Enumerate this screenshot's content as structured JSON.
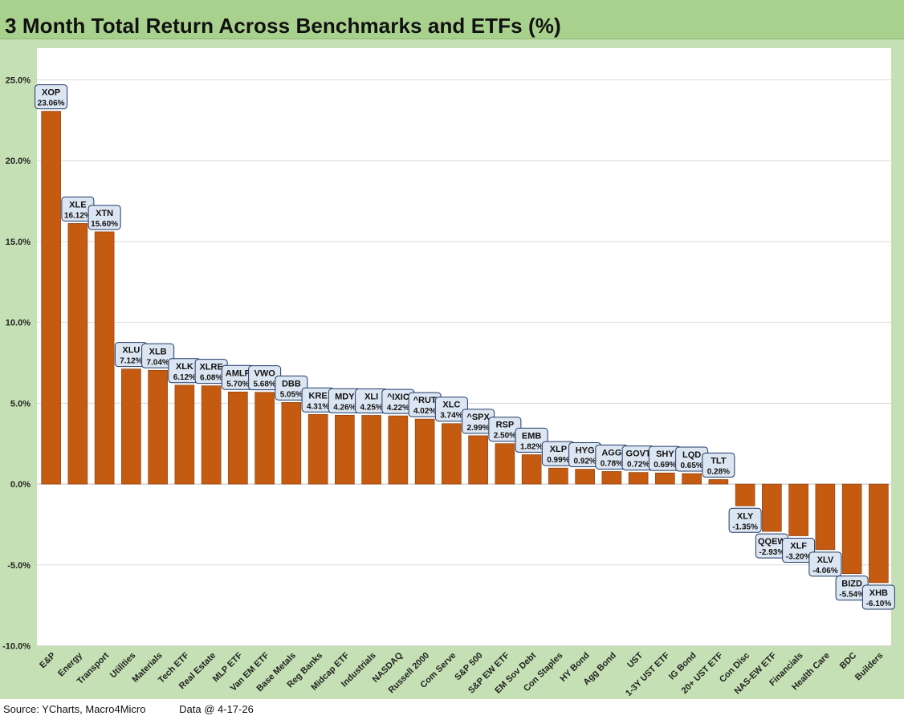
{
  "title": "3 Month Total Return Across Benchmarks and ETFs (%)",
  "footer": {
    "source": "Source: YCharts, Macro4Micro",
    "date": "Data @ 4-17-26"
  },
  "colors": {
    "bar": "#c55a11",
    "bar_stroke": "#843c0c",
    "header_bg": "#a9d18e",
    "frame_bg": "#c5e0b4",
    "label_bg": "#dce6f2",
    "label_stroke": "#1f3864"
  },
  "chart_data": {
    "type": "bar",
    "title": "3 Month Total Return Across Benchmarks and ETFs (%)",
    "xlabel": "",
    "ylabel": "",
    "ylim": [
      -10,
      25
    ],
    "yticks": [
      25,
      20,
      15,
      10,
      5,
      0,
      -5,
      -10
    ],
    "ytick_labels": [
      "25.0%",
      "20.0%",
      "15.0%",
      "10.0%",
      "5.0%",
      "0.0%",
      "-5.0%",
      "-10.0%"
    ],
    "grid": true,
    "categories": [
      "E&P",
      "Energy",
      "Transport",
      "Utilities",
      "Materials",
      "Tech ETF",
      "Real Estate",
      "MLP ETF",
      "Van EM ETF",
      "Base Metals",
      "Reg Banks",
      "Midcap ETF",
      "Industrials",
      "NASDAQ",
      "Russell 2000",
      "Com Serve",
      "S&P 500",
      "S&P EW ETF",
      "EM Sov Debt",
      "Con Staples",
      "HY Bond",
      "Agg Bond",
      "UST",
      "1-3Y UST ETF",
      "IG Bond",
      "20+ UST ETF",
      "Con Disc",
      "NAS-EW ETF",
      "Financials",
      "Health Care",
      "BDC",
      "Builders"
    ],
    "tickers": [
      "XOP",
      "XLE",
      "XTN",
      "XLU",
      "XLB",
      "XLK",
      "XLRE",
      "AMLP",
      "VWO",
      "DBB",
      "KRE",
      "MDY",
      "XLI",
      "^IXIC",
      "^RUT",
      "XLC",
      "^SPX",
      "RSP",
      "EMB",
      "XLP",
      "HYG",
      "AGG",
      "GOVT",
      "SHY",
      "LQD",
      "TLT",
      "XLY",
      "QQEW",
      "XLF",
      "XLV",
      "BIZD",
      "XHB"
    ],
    "values": [
      23.06,
      16.12,
      15.6,
      7.12,
      7.04,
      6.12,
      6.08,
      5.7,
      5.68,
      5.05,
      4.31,
      4.26,
      4.25,
      4.22,
      4.02,
      3.74,
      2.99,
      2.5,
      1.82,
      0.99,
      0.92,
      0.78,
      0.72,
      0.69,
      0.65,
      0.28,
      -1.35,
      -2.93,
      -3.2,
      -4.06,
      -5.54,
      -6.1
    ],
    "value_labels": [
      "23.06%",
      "16.12%",
      "15.60%",
      "7.12%",
      "7.04%",
      "6.12%",
      "6.08%",
      "5.70%",
      "5.68%",
      "5.05%",
      "4.31%",
      "4.26%",
      "4.25%",
      "4.22%",
      "4.02%",
      "3.74%",
      "2.99%",
      "2.50%",
      "1.82%",
      "0.99%",
      "0.92%",
      "0.78%",
      "0.72%",
      "0.69%",
      "0.65%",
      "0.28%",
      "-1.35%",
      "-2.93%",
      "-3.20%",
      "-4.06%",
      "-5.54%",
      "-6.10%"
    ]
  }
}
